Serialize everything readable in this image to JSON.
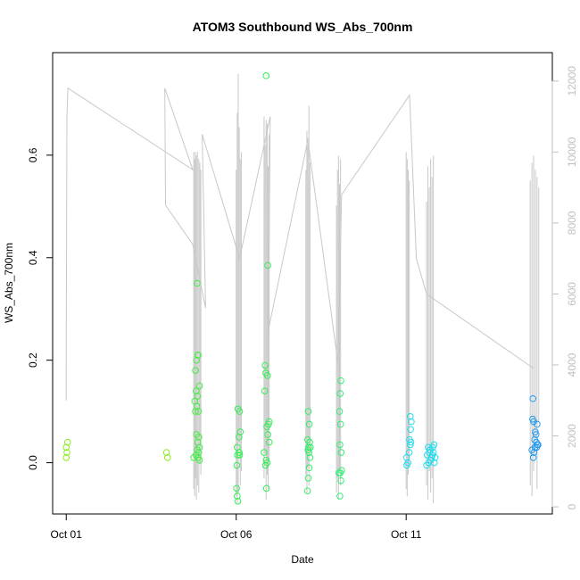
{
  "chart_data": {
    "type": "scatter",
    "title": "ATOM3 Southbound WS_Abs_700nm",
    "xlabel": "Date",
    "ylabel": "WS_Abs_700nm",
    "x_ticks": [
      "Oct 01",
      "Oct 06",
      "Oct 11"
    ],
    "x_tick_days": [
      1,
      6,
      11
    ],
    "xlim": [
      0.6,
      15.3
    ],
    "ylim": [
      -0.1,
      0.8
    ],
    "y_ticks": [
      0.0,
      0.2,
      0.4,
      0.6
    ],
    "y_tick_labels": [
      "0.0",
      "0.2",
      "0.4",
      "0.6"
    ],
    "y2lim": [
      -200,
      12800
    ],
    "y2_ticks": [
      0,
      2000,
      4000,
      6000,
      8000,
      10000,
      12000
    ],
    "y2_tick_labels": [
      "0",
      "2000",
      "4000",
      "6000",
      "8000",
      "10000",
      "12000"
    ],
    "grid": false,
    "legend": "none",
    "marker": "open-circle",
    "secondary_line_color": "#c8c8c8",
    "colors": {
      "yellowgreen": "#88ee22",
      "green": "#33ee55",
      "cyan": "#22ddee",
      "blue": "#2299ee",
      "line_gray": "#c8c8c8",
      "right_axis_gray": "#c0c0c0"
    },
    "points": [
      {
        "x": 1.0,
        "y": 0.01,
        "c": "#88ee22"
      },
      {
        "x": 1.02,
        "y": 0.02,
        "c": "#88ee22"
      },
      {
        "x": 1.0,
        "y": 0.03,
        "c": "#88ee22"
      },
      {
        "x": 1.04,
        "y": 0.04,
        "c": "#88ee22"
      },
      {
        "x": 3.98,
        "y": 0.01,
        "c": "#88ee22"
      },
      {
        "x": 3.95,
        "y": 0.02,
        "c": "#88ee22"
      },
      {
        "x": 4.85,
        "y": 0.35,
        "c": "#44ee44"
      },
      {
        "x": 4.88,
        "y": 0.21,
        "c": "#44ee44"
      },
      {
        "x": 4.83,
        "y": 0.2,
        "c": "#44ee44"
      },
      {
        "x": 4.87,
        "y": 0.21,
        "c": "#44ee44"
      },
      {
        "x": 4.8,
        "y": 0.18,
        "c": "#44ee44"
      },
      {
        "x": 4.92,
        "y": 0.15,
        "c": "#44ee44"
      },
      {
        "x": 4.82,
        "y": 0.14,
        "c": "#44ee44"
      },
      {
        "x": 4.86,
        "y": 0.13,
        "c": "#44ee44"
      },
      {
        "x": 4.78,
        "y": 0.12,
        "c": "#44ee44"
      },
      {
        "x": 4.84,
        "y": 0.11,
        "c": "#44ee44"
      },
      {
        "x": 4.8,
        "y": 0.1,
        "c": "#44ee44"
      },
      {
        "x": 4.89,
        "y": 0.1,
        "c": "#44ee44"
      },
      {
        "x": 4.83,
        "y": 0.055,
        "c": "#44ee44"
      },
      {
        "x": 4.9,
        "y": 0.05,
        "c": "#44ee44"
      },
      {
        "x": 4.87,
        "y": 0.04,
        "c": "#44ee44"
      },
      {
        "x": 4.92,
        "y": 0.03,
        "c": "#44ee44"
      },
      {
        "x": 4.85,
        "y": 0.025,
        "c": "#44ee44"
      },
      {
        "x": 4.9,
        "y": 0.02,
        "c": "#44ee44"
      },
      {
        "x": 4.82,
        "y": 0.015,
        "c": "#44ee44"
      },
      {
        "x": 4.88,
        "y": 0.01,
        "c": "#44ee44"
      },
      {
        "x": 4.75,
        "y": 0.01,
        "c": "#44ee44"
      },
      {
        "x": 4.92,
        "y": 0.005,
        "c": "#44ee44"
      },
      {
        "x": 6.05,
        "y": 0.105,
        "c": "#33ee55"
      },
      {
        "x": 6.1,
        "y": 0.1,
        "c": "#33ee55"
      },
      {
        "x": 6.12,
        "y": 0.06,
        "c": "#33ee55"
      },
      {
        "x": 6.08,
        "y": 0.05,
        "c": "#33ee55"
      },
      {
        "x": 6.03,
        "y": 0.03,
        "c": "#33ee55"
      },
      {
        "x": 6.09,
        "y": 0.02,
        "c": "#33ee55"
      },
      {
        "x": 6.04,
        "y": 0.015,
        "c": "#33ee55"
      },
      {
        "x": 6.1,
        "y": 0.015,
        "c": "#33ee55"
      },
      {
        "x": 6.02,
        "y": -0.005,
        "c": "#33ee55"
      },
      {
        "x": 6.01,
        "y": -0.05,
        "c": "#33ee55"
      },
      {
        "x": 6.03,
        "y": -0.065,
        "c": "#33ee55"
      },
      {
        "x": 6.05,
        "y": -0.075,
        "c": "#33ee55"
      },
      {
        "x": 6.88,
        "y": 0.755,
        "c": "#33ee55"
      },
      {
        "x": 6.93,
        "y": 0.385,
        "c": "#33ee55"
      },
      {
        "x": 6.85,
        "y": 0.19,
        "c": "#33ee55"
      },
      {
        "x": 6.87,
        "y": 0.175,
        "c": "#33ee55"
      },
      {
        "x": 6.92,
        "y": 0.17,
        "c": "#33ee55"
      },
      {
        "x": 6.84,
        "y": 0.14,
        "c": "#33ee55"
      },
      {
        "x": 6.97,
        "y": 0.08,
        "c": "#33ee55"
      },
      {
        "x": 6.9,
        "y": 0.07,
        "c": "#33ee55"
      },
      {
        "x": 6.95,
        "y": 0.075,
        "c": "#33ee55"
      },
      {
        "x": 6.93,
        "y": 0.055,
        "c": "#33ee55"
      },
      {
        "x": 6.97,
        "y": 0.04,
        "c": "#33ee55"
      },
      {
        "x": 6.82,
        "y": 0.02,
        "c": "#33ee55"
      },
      {
        "x": 6.88,
        "y": 0.005,
        "c": "#33ee55"
      },
      {
        "x": 6.91,
        "y": 0.0,
        "c": "#33ee55"
      },
      {
        "x": 6.86,
        "y": -0.005,
        "c": "#33ee55"
      },
      {
        "x": 6.89,
        "y": -0.05,
        "c": "#33ee55"
      },
      {
        "x": 8.12,
        "y": 0.1,
        "c": "#33ee66"
      },
      {
        "x": 8.15,
        "y": 0.075,
        "c": "#33ee66"
      },
      {
        "x": 8.1,
        "y": 0.045,
        "c": "#33ee66"
      },
      {
        "x": 8.16,
        "y": 0.04,
        "c": "#33ee66"
      },
      {
        "x": 8.13,
        "y": 0.03,
        "c": "#33ee66"
      },
      {
        "x": 8.18,
        "y": 0.03,
        "c": "#33ee66"
      },
      {
        "x": 8.11,
        "y": 0.025,
        "c": "#33ee66"
      },
      {
        "x": 8.14,
        "y": 0.02,
        "c": "#33ee66"
      },
      {
        "x": 8.17,
        "y": 0.01,
        "c": "#33ee66"
      },
      {
        "x": 8.15,
        "y": -0.01,
        "c": "#33ee66"
      },
      {
        "x": 8.12,
        "y": -0.03,
        "c": "#33ee66"
      },
      {
        "x": 8.1,
        "y": -0.055,
        "c": "#33ee66"
      },
      {
        "x": 9.08,
        "y": 0.16,
        "c": "#33ee77"
      },
      {
        "x": 9.06,
        "y": 0.135,
        "c": "#33ee77"
      },
      {
        "x": 9.04,
        "y": 0.1,
        "c": "#33ee77"
      },
      {
        "x": 9.07,
        "y": 0.075,
        "c": "#33ee77"
      },
      {
        "x": 9.05,
        "y": 0.035,
        "c": "#33ee77"
      },
      {
        "x": 9.09,
        "y": 0.02,
        "c": "#33ee77"
      },
      {
        "x": 9.02,
        "y": -0.02,
        "c": "#33ee77"
      },
      {
        "x": 9.1,
        "y": -0.015,
        "c": "#33ee77"
      },
      {
        "x": 9.06,
        "y": -0.02,
        "c": "#33ee77"
      },
      {
        "x": 9.08,
        "y": -0.035,
        "c": "#33ee77"
      },
      {
        "x": 9.05,
        "y": -0.065,
        "c": "#33ee77"
      },
      {
        "x": 11.12,
        "y": 0.09,
        "c": "#22ddee"
      },
      {
        "x": 11.15,
        "y": 0.08,
        "c": "#22ddee"
      },
      {
        "x": 11.13,
        "y": 0.065,
        "c": "#22ddee"
      },
      {
        "x": 11.1,
        "y": 0.045,
        "c": "#22ddee"
      },
      {
        "x": 11.14,
        "y": 0.04,
        "c": "#22ddee"
      },
      {
        "x": 11.12,
        "y": 0.035,
        "c": "#22ddee"
      },
      {
        "x": 11.09,
        "y": 0.02,
        "c": "#22ddee"
      },
      {
        "x": 11.05,
        "y": 0.0,
        "c": "#22ddee"
      },
      {
        "x": 11.02,
        "y": -0.005,
        "c": "#22ddee"
      },
      {
        "x": 11.01,
        "y": 0.01,
        "c": "#22ddee"
      },
      {
        "x": 11.65,
        "y": 0.03,
        "c": "#22ddee"
      },
      {
        "x": 11.7,
        "y": 0.025,
        "c": "#22ddee"
      },
      {
        "x": 11.68,
        "y": 0.02,
        "c": "#22ddee"
      },
      {
        "x": 11.62,
        "y": 0.015,
        "c": "#22ddee"
      },
      {
        "x": 11.75,
        "y": 0.01,
        "c": "#22ddee"
      },
      {
        "x": 11.72,
        "y": 0.005,
        "c": "#22ddee"
      },
      {
        "x": 11.66,
        "y": 0.0,
        "c": "#22ddee"
      },
      {
        "x": 11.78,
        "y": 0.03,
        "c": "#22ddee"
      },
      {
        "x": 11.8,
        "y": 0.02,
        "c": "#22ddee"
      },
      {
        "x": 11.82,
        "y": 0.035,
        "c": "#22ddee"
      },
      {
        "x": 11.85,
        "y": 0.01,
        "c": "#22ddee"
      },
      {
        "x": 11.83,
        "y": 0.0,
        "c": "#22ddee"
      },
      {
        "x": 11.6,
        "y": -0.005,
        "c": "#22ddee"
      },
      {
        "x": 11.77,
        "y": 0.015,
        "c": "#22ddee"
      },
      {
        "x": 14.73,
        "y": 0.125,
        "c": "#2299ee"
      },
      {
        "x": 14.75,
        "y": 0.08,
        "c": "#2299ee"
      },
      {
        "x": 14.72,
        "y": 0.085,
        "c": "#2299ee"
      },
      {
        "x": 14.85,
        "y": 0.075,
        "c": "#2299ee"
      },
      {
        "x": 14.8,
        "y": 0.06,
        "c": "#2299ee"
      },
      {
        "x": 14.82,
        "y": 0.055,
        "c": "#2299ee"
      },
      {
        "x": 14.78,
        "y": 0.045,
        "c": "#2299ee"
      },
      {
        "x": 14.83,
        "y": 0.04,
        "c": "#2299ee"
      },
      {
        "x": 14.86,
        "y": 0.035,
        "c": "#2299ee"
      },
      {
        "x": 14.88,
        "y": 0.035,
        "c": "#2299ee"
      },
      {
        "x": 14.79,
        "y": 0.03,
        "c": "#2299ee"
      },
      {
        "x": 14.84,
        "y": 0.03,
        "c": "#2299ee"
      },
      {
        "x": 14.7,
        "y": 0.025,
        "c": "#2299ee"
      },
      {
        "x": 14.76,
        "y": 0.02,
        "c": "#2299ee"
      },
      {
        "x": 14.74,
        "y": 0.01,
        "c": "#2299ee"
      }
    ],
    "secondary_series": {
      "name": "",
      "x": [
        1.0,
        1.0,
        1.02,
        1.05,
        4.72,
        3.9,
        3.92,
        4.72,
        5.1,
        5.0,
        6.1,
        7.0,
        6.95,
        8.1,
        8.1,
        9.0,
        9.1,
        11.1,
        11.3,
        11.6,
        14.75
      ],
      "y2": [
        3000,
        4000,
        11000,
        11800,
        9500,
        11800,
        8500,
        7400,
        5600,
        10500,
        7000,
        11000,
        5000,
        10300,
        10400,
        4000,
        8800,
        11600,
        7000,
        6000,
        3900
      ]
    },
    "secondary_spikes": [
      {
        "x": 4.75,
        "lo": 500,
        "hi": 10000
      },
      {
        "x": 4.78,
        "lo": 300,
        "hi": 9800
      },
      {
        "x": 4.8,
        "lo": 800,
        "hi": 10000
      },
      {
        "x": 4.83,
        "lo": 200,
        "hi": 9900
      },
      {
        "x": 4.86,
        "lo": 600,
        "hi": 10000
      },
      {
        "x": 4.9,
        "lo": 400,
        "hi": 9800
      },
      {
        "x": 4.93,
        "lo": 1200,
        "hi": 9700
      },
      {
        "x": 4.96,
        "lo": 900,
        "hi": 9500
      },
      {
        "x": 6.0,
        "lo": 300,
        "hi": 9500
      },
      {
        "x": 6.03,
        "lo": 100,
        "hi": 11100
      },
      {
        "x": 6.06,
        "lo": 400,
        "hi": 12200
      },
      {
        "x": 6.09,
        "lo": 1800,
        "hi": 10700
      },
      {
        "x": 6.12,
        "lo": 600,
        "hi": 9800
      },
      {
        "x": 6.15,
        "lo": 1000,
        "hi": 10000
      },
      {
        "x": 6.82,
        "lo": 800,
        "hi": 11000
      },
      {
        "x": 6.85,
        "lo": 1500,
        "hi": 10200
      },
      {
        "x": 6.88,
        "lo": 200,
        "hi": 10900
      },
      {
        "x": 6.91,
        "lo": 900,
        "hi": 10800
      },
      {
        "x": 6.94,
        "lo": 500,
        "hi": 9600
      },
      {
        "x": 6.97,
        "lo": 1300,
        "hi": 10500
      },
      {
        "x": 8.05,
        "lo": 900,
        "hi": 9500
      },
      {
        "x": 8.08,
        "lo": 400,
        "hi": 10600
      },
      {
        "x": 8.11,
        "lo": 1100,
        "hi": 10200
      },
      {
        "x": 8.14,
        "lo": 600,
        "hi": 11300
      },
      {
        "x": 8.17,
        "lo": 1500,
        "hi": 9700
      },
      {
        "x": 8.95,
        "lo": 400,
        "hi": 8500
      },
      {
        "x": 8.98,
        "lo": 800,
        "hi": 9500
      },
      {
        "x": 9.01,
        "lo": 200,
        "hi": 9900
      },
      {
        "x": 9.04,
        "lo": 1000,
        "hi": 9100
      },
      {
        "x": 9.07,
        "lo": 600,
        "hi": 9800
      },
      {
        "x": 11.0,
        "lo": 500,
        "hi": 10000
      },
      {
        "x": 11.03,
        "lo": 300,
        "hi": 9800
      },
      {
        "x": 11.06,
        "lo": 900,
        "hi": 9500
      },
      {
        "x": 11.09,
        "lo": 1200,
        "hi": 9200
      },
      {
        "x": 11.6,
        "lo": 600,
        "hi": 8600
      },
      {
        "x": 11.64,
        "lo": 200,
        "hi": 9600
      },
      {
        "x": 11.68,
        "lo": 1000,
        "hi": 9000
      },
      {
        "x": 11.72,
        "lo": 400,
        "hi": 9800
      },
      {
        "x": 11.76,
        "lo": 800,
        "hi": 9300
      },
      {
        "x": 11.8,
        "lo": 100,
        "hi": 9900
      },
      {
        "x": 14.65,
        "lo": 600,
        "hi": 9200
      },
      {
        "x": 14.7,
        "lo": 300,
        "hi": 9700
      },
      {
        "x": 14.75,
        "lo": 1000,
        "hi": 9900
      },
      {
        "x": 14.8,
        "lo": 1500,
        "hi": 9500
      },
      {
        "x": 14.85,
        "lo": 500,
        "hi": 9300
      },
      {
        "x": 14.9,
        "lo": 2400,
        "hi": 9000
      }
    ]
  }
}
